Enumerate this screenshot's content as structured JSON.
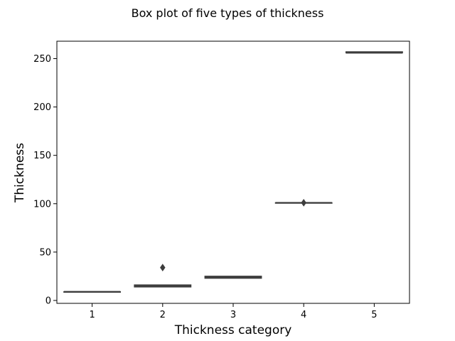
{
  "chart_data": {
    "type": "box",
    "title": "Box plot of five types of thickness",
    "xlabel": "Thickness category",
    "ylabel": "Thickness",
    "categories": [
      "1",
      "2",
      "3",
      "4",
      "5"
    ],
    "ylim": [
      -3,
      268
    ],
    "yticks": [
      0,
      50,
      100,
      150,
      200,
      250
    ],
    "grid": false,
    "color": "#3d3d3d",
    "boxes": [
      {
        "category": "1",
        "min": 9,
        "q1": 9,
        "median": 9,
        "q3": 9,
        "max": 9,
        "outliers": []
      },
      {
        "category": "2",
        "min": 14,
        "q1": 14,
        "median": 15,
        "q3": 16,
        "max": 16,
        "outliers": [
          34
        ]
      },
      {
        "category": "3",
        "min": 23,
        "q1": 23,
        "median": 24,
        "q3": 25,
        "max": 25,
        "outliers": []
      },
      {
        "category": "4",
        "min": 101,
        "q1": 101,
        "median": 101,
        "q3": 101,
        "max": 101,
        "outliers": [
          101
        ]
      },
      {
        "category": "5",
        "min": 256,
        "q1": 256,
        "median": 256,
        "q3": 257,
        "max": 257,
        "outliers": []
      }
    ]
  }
}
